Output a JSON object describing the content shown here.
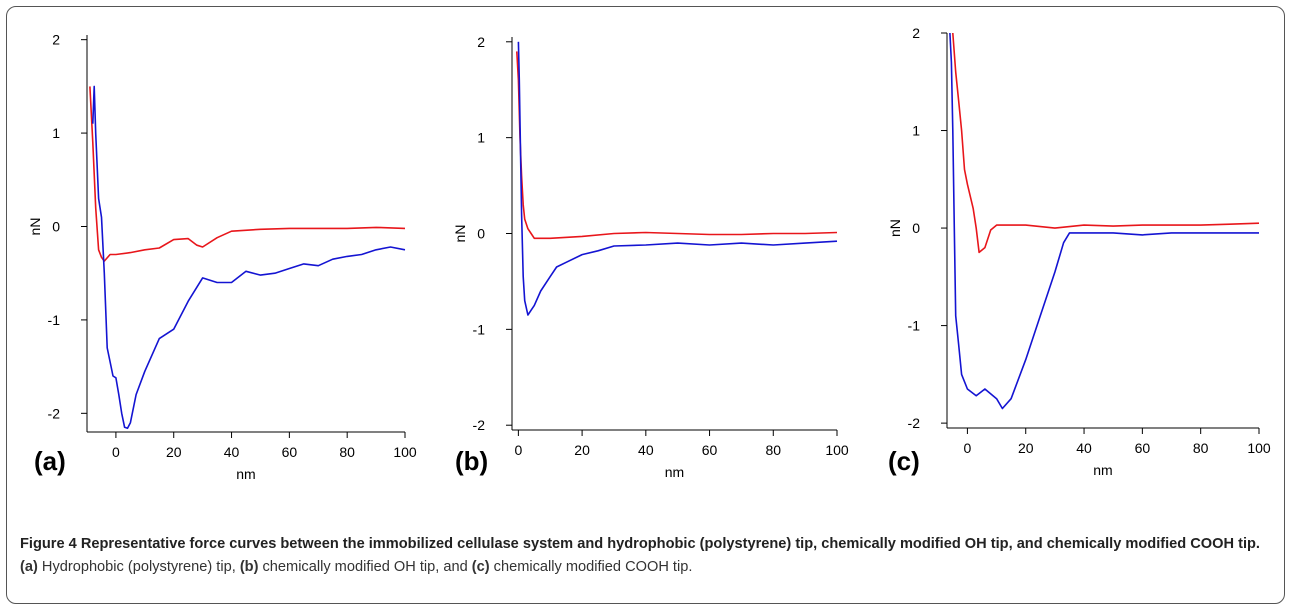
{
  "chart_data": [
    {
      "type": "line",
      "panel_label": "(a)",
      "xlabel": "nm",
      "ylabel": "nN",
      "xlim": [
        -10,
        100
      ],
      "ylim": [
        -2.2,
        2.05
      ],
      "xticks": [
        0,
        20,
        40,
        60,
        80,
        100
      ],
      "yticks": [
        -2,
        -1,
        0,
        1,
        2
      ],
      "grid": false,
      "series": [
        {
          "color": "#e8161b",
          "x": [
            -9,
            -8,
            -7,
            -6,
            -5,
            -4,
            -2,
            0,
            5,
            10,
            15,
            20,
            25,
            28,
            30,
            35,
            40,
            50,
            60,
            70,
            80,
            90,
            100
          ],
          "y": [
            1.5,
            0.9,
            0.2,
            -0.25,
            -0.33,
            -0.37,
            -0.3,
            -0.3,
            -0.28,
            -0.25,
            -0.23,
            -0.14,
            -0.13,
            -0.2,
            -0.22,
            -0.12,
            -0.05,
            -0.03,
            -0.02,
            -0.02,
            -0.02,
            -0.01,
            -0.02
          ]
        },
        {
          "color": "#1414d2",
          "x": [
            -8,
            -7.5,
            -7,
            -6,
            -5,
            -4,
            -3,
            -2,
            -1,
            0,
            1,
            2,
            3,
            4,
            5,
            7,
            10,
            15,
            20,
            25,
            30,
            35,
            40,
            45,
            50,
            55,
            60,
            65,
            70,
            75,
            80,
            85,
            90,
            95,
            100
          ],
          "y": [
            1.1,
            1.5,
            1.0,
            0.3,
            0.1,
            -0.5,
            -1.3,
            -1.45,
            -1.6,
            -1.62,
            -1.8,
            -2.0,
            -2.15,
            -2.16,
            -2.1,
            -1.8,
            -1.55,
            -1.2,
            -1.1,
            -0.8,
            -0.55,
            -0.6,
            -0.6,
            -0.48,
            -0.52,
            -0.5,
            -0.45,
            -0.4,
            -0.42,
            -0.35,
            -0.32,
            -0.3,
            -0.25,
            -0.22,
            -0.25
          ]
        }
      ]
    },
    {
      "type": "line",
      "panel_label": "(b)",
      "xlabel": "nm",
      "ylabel": "nN",
      "xlim": [
        -2,
        100
      ],
      "ylim": [
        -2.05,
        2.05
      ],
      "xticks": [
        0,
        20,
        40,
        60,
        80,
        100
      ],
      "yticks": [
        -2,
        -1,
        0,
        1,
        2
      ],
      "grid": false,
      "series": [
        {
          "color": "#e8161b",
          "x": [
            -0.5,
            0,
            0.5,
            1,
            1.5,
            2,
            3,
            4,
            5,
            10,
            20,
            30,
            40,
            50,
            60,
            70,
            80,
            90,
            100
          ],
          "y": [
            1.9,
            1.6,
            1.0,
            0.6,
            0.3,
            0.15,
            0.05,
            0.0,
            -0.05,
            -0.05,
            -0.03,
            0.0,
            0.01,
            0.0,
            -0.01,
            -0.01,
            0.0,
            0.0,
            0.01
          ]
        },
        {
          "color": "#1414d2",
          "x": [
            0,
            0.3,
            0.7,
            1,
            1.5,
            2,
            3,
            4,
            5,
            7,
            10,
            12,
            15,
            20,
            25,
            30,
            40,
            50,
            60,
            70,
            80,
            90,
            100
          ],
          "y": [
            2.0,
            1.6,
            0.8,
            0.2,
            -0.45,
            -0.7,
            -0.85,
            -0.8,
            -0.75,
            -0.6,
            -0.45,
            -0.35,
            -0.3,
            -0.22,
            -0.18,
            -0.13,
            -0.12,
            -0.1,
            -0.12,
            -0.1,
            -0.12,
            -0.1,
            -0.08
          ]
        }
      ]
    },
    {
      "type": "line",
      "panel_label": "(c)",
      "xlabel": "nm",
      "ylabel": "nN",
      "xlim": [
        -7,
        100
      ],
      "ylim": [
        -2.05,
        2.0
      ],
      "xticks": [
        0,
        20,
        40,
        60,
        80,
        100
      ],
      "yticks": [
        -2,
        -1,
        0,
        1,
        2
      ],
      "grid": false,
      "series": [
        {
          "color": "#e8161b",
          "x": [
            -5,
            -4,
            -3,
            -2,
            -1,
            0,
            2,
            3,
            4,
            6,
            8,
            10,
            20,
            30,
            40,
            50,
            60,
            70,
            80,
            90,
            100
          ],
          "y": [
            2.0,
            1.6,
            1.3,
            1.0,
            0.6,
            0.45,
            0.2,
            0.0,
            -0.25,
            -0.2,
            -0.02,
            0.03,
            0.03,
            0.0,
            0.03,
            0.02,
            0.03,
            0.03,
            0.03,
            0.04,
            0.05
          ]
        },
        {
          "color": "#1414d2",
          "x": [
            -6,
            -5.5,
            -5,
            -4.5,
            -4,
            -3,
            -2,
            0,
            3,
            6,
            10,
            12,
            15,
            20,
            25,
            30,
            33,
            35,
            40,
            50,
            60,
            70,
            80,
            90,
            100
          ],
          "y": [
            2.0,
            1.7,
            1.0,
            0.0,
            -0.9,
            -1.2,
            -1.5,
            -1.65,
            -1.72,
            -1.65,
            -1.75,
            -1.85,
            -1.75,
            -1.35,
            -0.9,
            -0.45,
            -0.15,
            -0.05,
            -0.05,
            -0.05,
            -0.07,
            -0.05,
            -0.05,
            -0.05,
            -0.05
          ]
        }
      ]
    }
  ],
  "caption": {
    "title": "Figure 4 Representative force curves between the immobilized cellulase system and hydrophobic (polystyrene) tip, chemically modified OH tip, and chemically modified COOH tip.",
    "label_a": "(a)",
    "text_a": " Hydrophobic (polystyrene) tip, ",
    "label_b": "(b)",
    "text_b": " chemically modified OH tip, and ",
    "label_c": "(c)",
    "text_c": " chemically modified COOH tip."
  },
  "colors": {
    "frame": "#555555",
    "red_series": "#e8161b",
    "blue_series": "#1414d2"
  }
}
